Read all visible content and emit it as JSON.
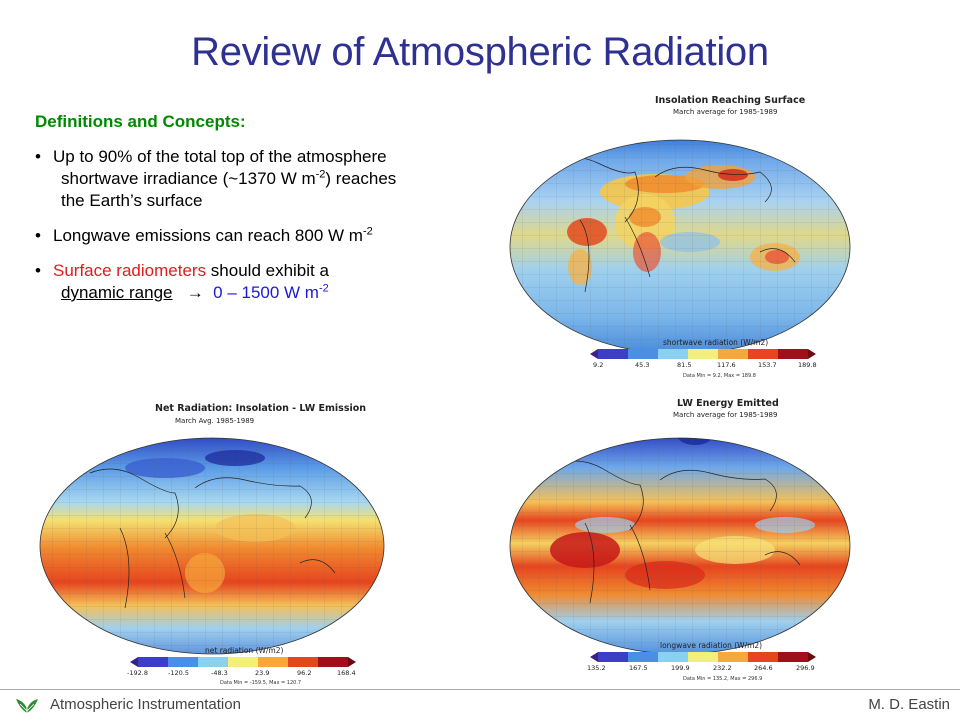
{
  "slide": {
    "title": "Review of Atmospheric Radiation",
    "section_heading": "Definitions and Concepts:",
    "bullets": [
      {
        "line1": "Up to 90% of the total top of the atmosphere",
        "line2_a": "shortwave irradiance (~1370 W m",
        "line2_sup": "-2",
        "line2_b": ") reaches",
        "line3": "the Earth’s surface"
      },
      {
        "text": "Longwave emissions can reach 800 W m",
        "sup": "-2"
      },
      {
        "red_part": "Surface radiometers",
        "rest": " should exhibit a",
        "underlined": "dynamic range",
        "arrow": "→",
        "range": "0 – 1500 W m",
        "range_sup": "-2"
      }
    ]
  },
  "colors": {
    "title": "#2e3192",
    "heading": "#008a00",
    "highlight_red": "#e41b1b",
    "highlight_blue": "#1b1bd4"
  },
  "maps": {
    "insolation": {
      "title": "Insolation Reaching Surface",
      "subtitle": "March average for 1985-1989",
      "colorbar_title": "shortwave radiation (W/m2)",
      "ticks": [
        "9.2",
        "45.3",
        "81.5",
        "117.6",
        "153.7",
        "189.8"
      ],
      "note": "Data Min = 9.2, Max = 189.8"
    },
    "net": {
      "title": "Net Radiation:  Insolation - LW Emission",
      "subtitle": "March Avg. 1985-1989",
      "colorbar_title": "net radiation (W/m2)",
      "ticks": [
        "-192.8",
        "-120.5",
        "-48.3",
        "23.9",
        "96.2",
        "168.4"
      ],
      "note": "Data Min = -159.5, Max = 120.7"
    },
    "lw": {
      "title": "LW Energy Emitted",
      "subtitle": "March average for 1985-1989",
      "colorbar_title": "longwave radiation (W/m2)",
      "ticks": [
        "135.2",
        "167.5",
        "199.9",
        "232.2",
        "264.6",
        "296.9"
      ],
      "note": "Data Min = 135.2, Max = 296.9"
    }
  },
  "footer": {
    "left": "Atmospheric Instrumentation",
    "right": "M. D. Eastin"
  }
}
